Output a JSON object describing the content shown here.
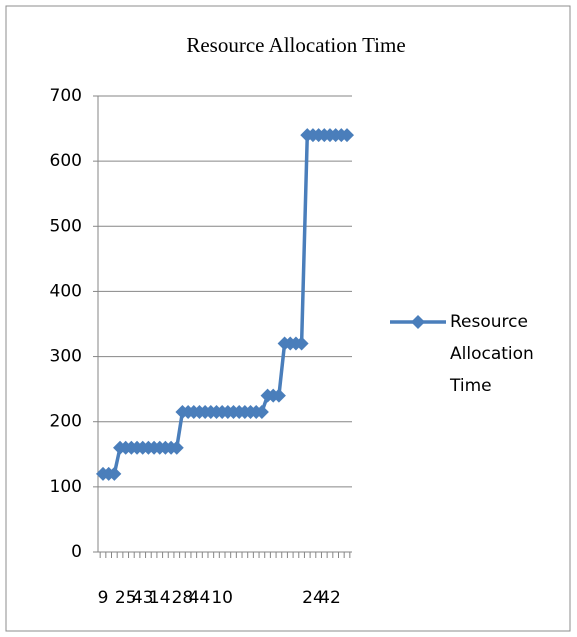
{
  "chart_data": {
    "type": "line",
    "title": "Resource Allocation Time",
    "categories": [
      "9",
      null,
      null,
      null,
      "25",
      null,
      null,
      "43",
      null,
      null,
      "14",
      null,
      null,
      null,
      "28",
      null,
      null,
      "44",
      null,
      null,
      null,
      "10",
      null,
      null,
      null,
      null,
      null,
      null,
      null,
      null,
      null,
      null,
      null,
      null,
      null,
      null,
      null,
      "24",
      null,
      null,
      "42",
      null,
      null,
      null
    ],
    "series": [
      {
        "name": "Resource Allocation Time",
        "color": "#4a7ebb",
        "values": [
          120,
          120,
          120,
          160,
          160,
          160,
          160,
          160,
          160,
          160,
          160,
          160,
          160,
          160,
          215,
          215,
          215,
          215,
          215,
          215,
          215,
          215,
          215,
          215,
          215,
          215,
          215,
          215,
          215,
          240,
          240,
          240,
          320,
          320,
          320,
          320,
          640,
          640,
          640,
          640,
          640,
          640,
          640,
          640
        ]
      }
    ],
    "ylim": [
      0,
      700
    ],
    "yticks": [
      0,
      100,
      200,
      300,
      400,
      500,
      600,
      700
    ],
    "grid": true,
    "legend": "right"
  }
}
